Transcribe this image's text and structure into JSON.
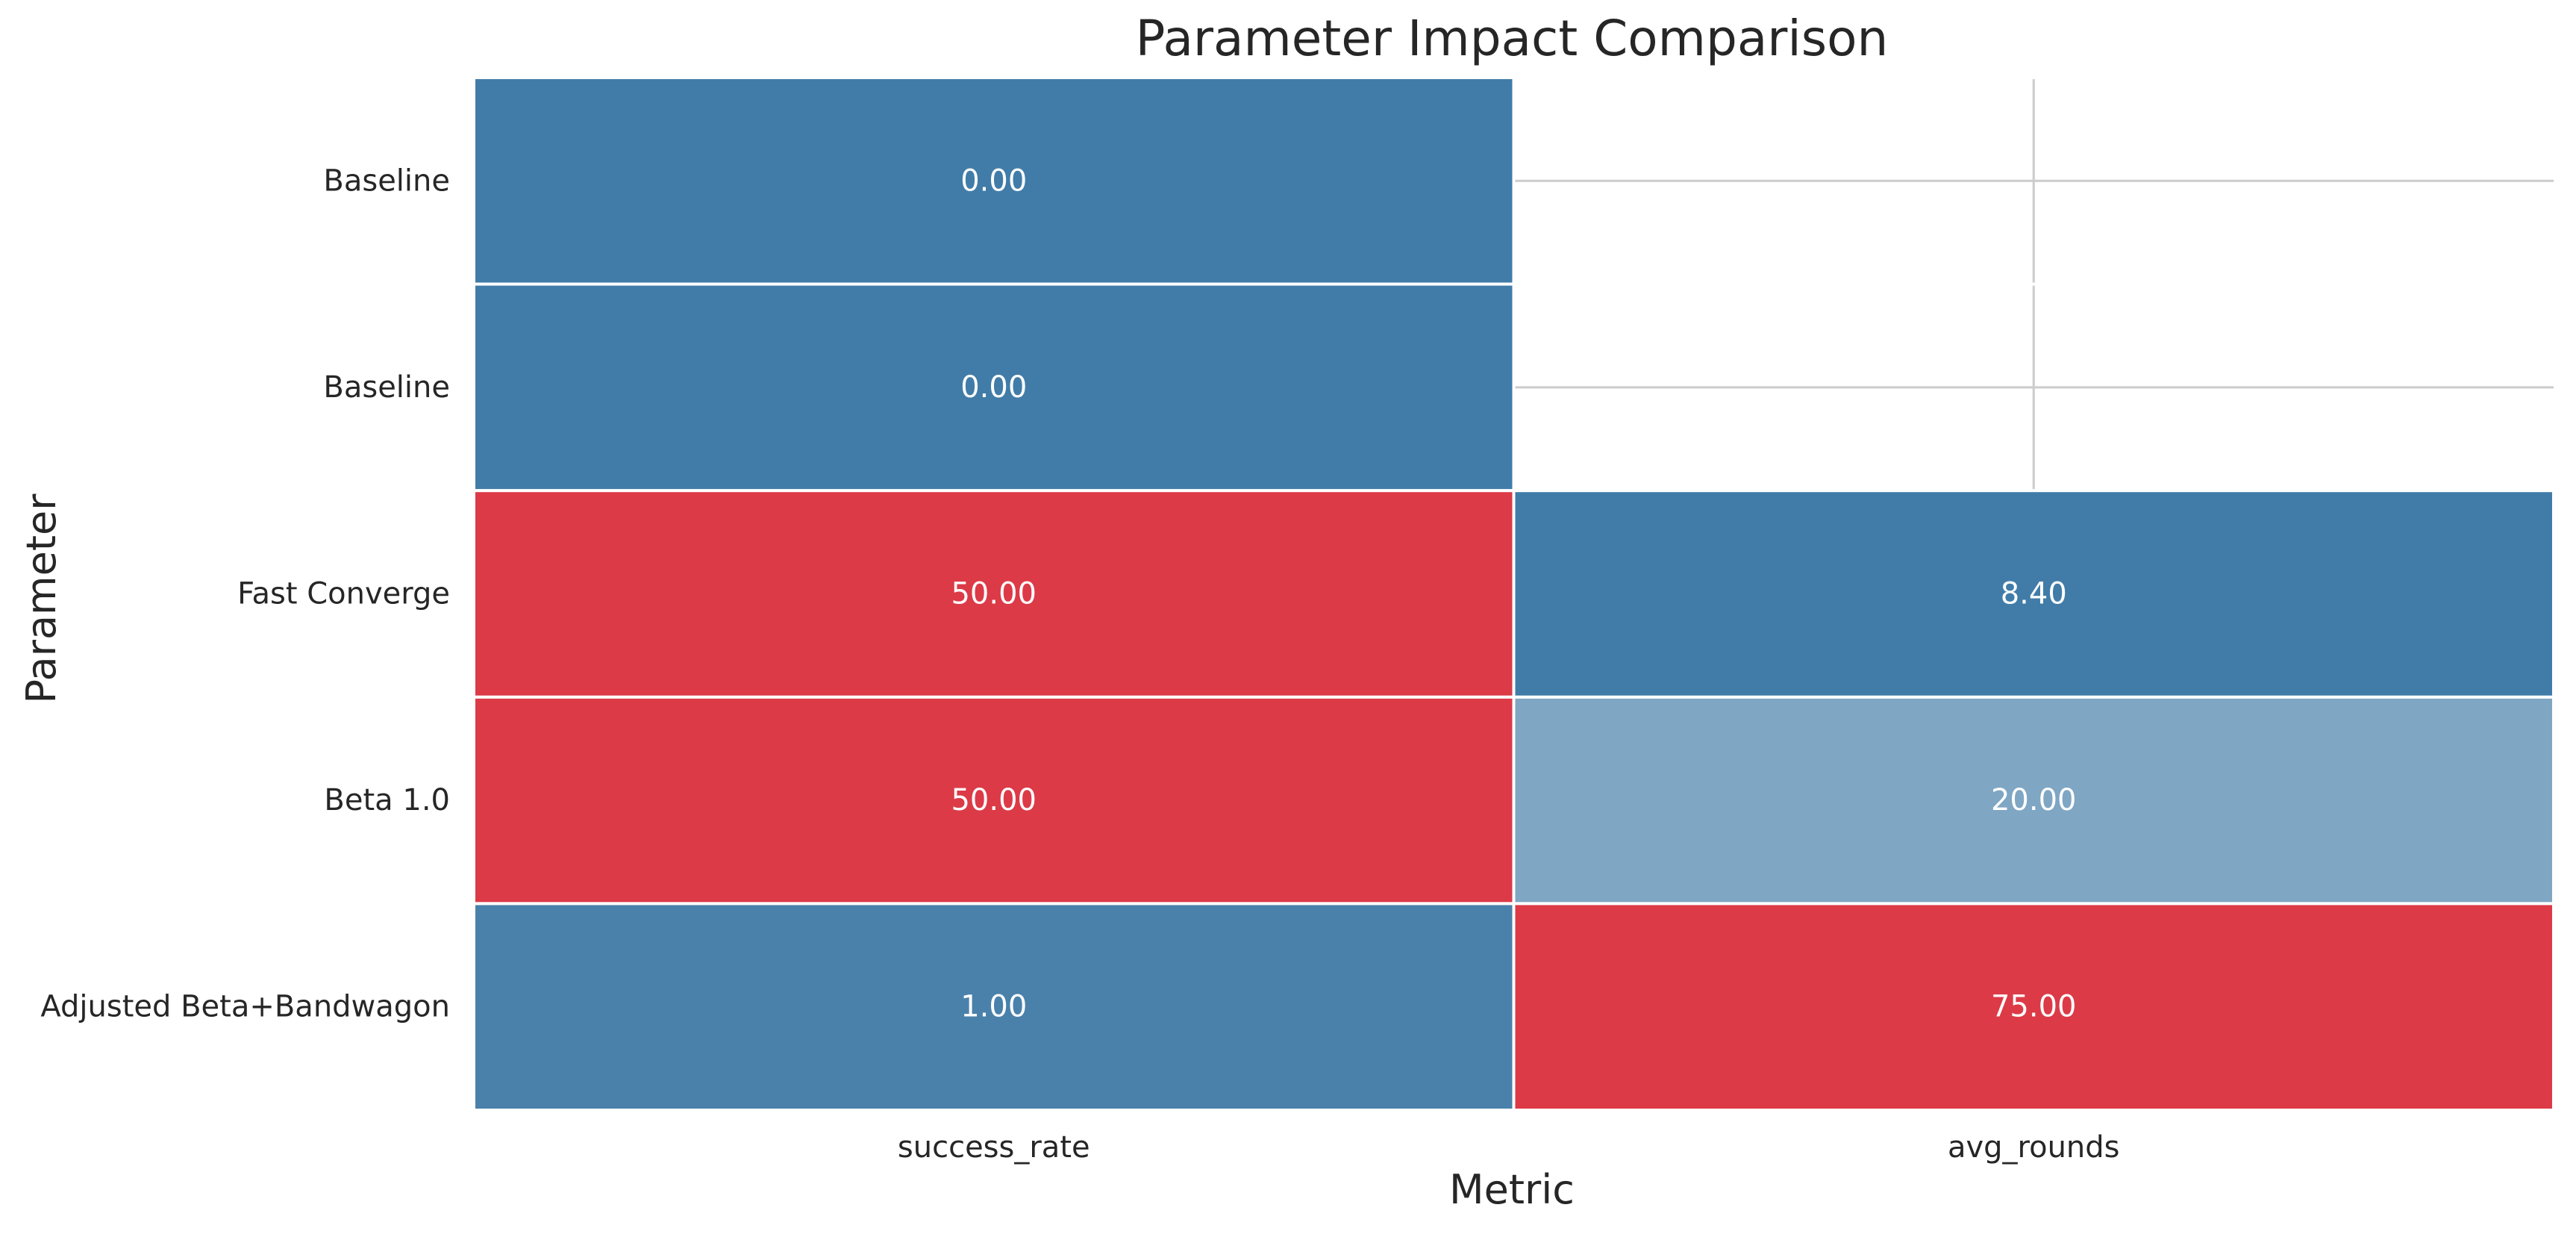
{
  "chart_data": {
    "type": "heatmap",
    "title": "Parameter Impact Comparison",
    "xlabel": "Metric",
    "ylabel": "Parameter",
    "columns": [
      "success_rate",
      "avg_rounds"
    ],
    "rows": [
      "Baseline",
      "Baseline",
      "Fast Converge",
      "Beta 1.0",
      "Adjusted Beta+Bandwagon"
    ],
    "cells": [
      [
        {
          "value": 0.0,
          "label": "0.00",
          "color": "#417ca8"
        },
        {
          "value": null,
          "label": "",
          "color": null
        }
      ],
      [
        {
          "value": 0.0,
          "label": "0.00",
          "color": "#417ca8"
        },
        {
          "value": null,
          "label": "",
          "color": null
        }
      ],
      [
        {
          "value": 50.0,
          "label": "50.00",
          "color": "#dc3a47"
        },
        {
          "value": 8.4,
          "label": "8.40",
          "color": "#417ca8"
        }
      ],
      [
        {
          "value": 50.0,
          "label": "50.00",
          "color": "#dc3a47"
        },
        {
          "value": 20.0,
          "label": "20.00",
          "color": "#7fa6c3"
        }
      ],
      [
        {
          "value": 1.0,
          "label": "1.00",
          "color": "#4981ab"
        },
        {
          "value": 75.0,
          "label": "75.00",
          "color": "#dc3a47"
        }
      ]
    ],
    "colormap": {
      "low": "#417ca8",
      "mid": "#f5f5f5",
      "high": "#dc3a47"
    },
    "missing_cells_show_grid": true,
    "colorbar": false
  }
}
